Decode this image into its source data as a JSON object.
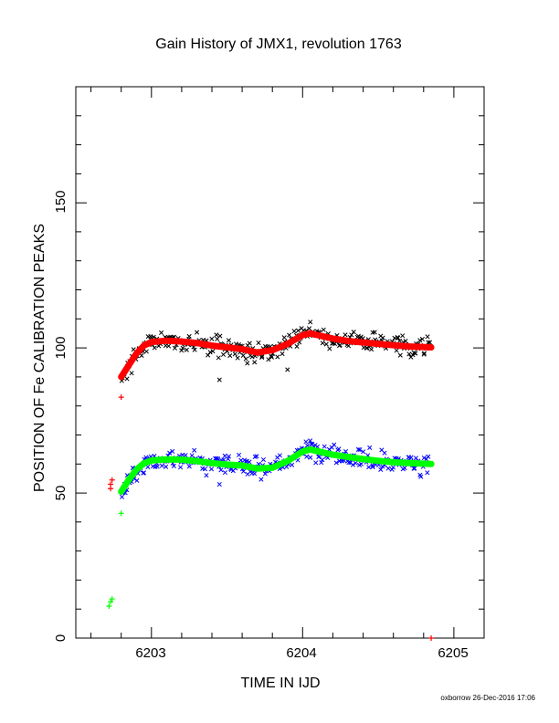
{
  "chart_data": {
    "type": "scatter",
    "title": "Gain History of JMX1, revolution 1763",
    "xlabel": "TIME IN IJD",
    "ylabel": "POSITION OF Fe CALIBRATION PEAKS",
    "xlim": [
      6202.5,
      6205.2
    ],
    "ylim": [
      0,
      190
    ],
    "x_ticks": [
      "6203",
      "6204",
      "6205"
    ],
    "y_ticks": [
      "0",
      "50",
      "100",
      "150"
    ],
    "grid": false,
    "legend": "none",
    "series": [
      {
        "marker": "x",
        "color": "#000000",
        "trend": [
          [
            6202.8,
            89
          ],
          [
            6202.85,
            93
          ],
          [
            6202.9,
            97
          ],
          [
            6202.95,
            100.5
          ],
          [
            6203.0,
            102
          ],
          [
            6203.1,
            102.5
          ],
          [
            6203.2,
            102.3
          ],
          [
            6203.3,
            101.8
          ],
          [
            6203.4,
            100.8
          ],
          [
            6203.5,
            100.2
          ],
          [
            6203.6,
            99.6
          ],
          [
            6203.7,
            98.5
          ],
          [
            6203.8,
            99.2
          ],
          [
            6203.9,
            101.5
          ],
          [
            6204.0,
            104.5
          ],
          [
            6204.05,
            105.2
          ],
          [
            6204.1,
            104.6
          ],
          [
            6204.2,
            103.4
          ],
          [
            6204.3,
            102.6
          ],
          [
            6204.4,
            102.0
          ],
          [
            6204.5,
            101.5
          ],
          [
            6204.6,
            101.0
          ],
          [
            6204.7,
            100.6
          ],
          [
            6204.85,
            100.2
          ]
        ],
        "scatter": 2.6,
        "outliers": [
          [
            6203.45,
            89
          ],
          [
            6203.9,
            92.5
          ],
          [
            6202.82,
            91
          ]
        ]
      },
      {
        "marker": "x",
        "color": "#0000ff",
        "trend": [
          [
            6202.8,
            50
          ],
          [
            6202.85,
            54
          ],
          [
            6202.9,
            57.5
          ],
          [
            6202.95,
            60
          ],
          [
            6203.0,
            61
          ],
          [
            6203.1,
            61.6
          ],
          [
            6203.2,
            61.5
          ],
          [
            6203.3,
            61.0
          ],
          [
            6203.4,
            60.3
          ],
          [
            6203.5,
            59.8
          ],
          [
            6203.6,
            59.6
          ],
          [
            6203.7,
            58.5
          ],
          [
            6203.8,
            58.8
          ],
          [
            6203.9,
            61.2
          ],
          [
            6204.0,
            64.5
          ],
          [
            6204.05,
            65.2
          ],
          [
            6204.1,
            64.5
          ],
          [
            6204.2,
            63.3
          ],
          [
            6204.3,
            62.5
          ],
          [
            6204.4,
            61.8
          ],
          [
            6204.5,
            61.2
          ],
          [
            6204.6,
            60.7
          ],
          [
            6204.7,
            60.4
          ],
          [
            6204.85,
            60.1
          ]
        ],
        "scatter": 2.6,
        "outliers": [
          [
            6203.45,
            53
          ],
          [
            6202.95,
            57
          ],
          [
            6204.05,
            68
          ]
        ]
      },
      {
        "marker": "line",
        "color": "#ff0000",
        "width": 7,
        "points": [
          [
            6202.8,
            90
          ],
          [
            6202.85,
            94
          ],
          [
            6202.9,
            98
          ],
          [
            6202.95,
            100.8
          ],
          [
            6203.0,
            102
          ],
          [
            6203.1,
            102.5
          ],
          [
            6203.2,
            102.2
          ],
          [
            6203.3,
            101.7
          ],
          [
            6203.4,
            100.8
          ],
          [
            6203.5,
            100.2
          ],
          [
            6203.6,
            99.6
          ],
          [
            6203.7,
            98.4
          ],
          [
            6203.8,
            99.2
          ],
          [
            6203.9,
            101.4
          ],
          [
            6204.0,
            104.4
          ],
          [
            6204.05,
            105.0
          ],
          [
            6204.1,
            104.4
          ],
          [
            6204.2,
            103.2
          ],
          [
            6204.3,
            102.4
          ],
          [
            6204.4,
            101.9
          ],
          [
            6204.5,
            101.4
          ],
          [
            6204.6,
            100.9
          ],
          [
            6204.7,
            100.5
          ],
          [
            6204.85,
            100.2
          ]
        ]
      },
      {
        "marker": "line",
        "color": "#00ff00",
        "width": 7,
        "points": [
          [
            6202.8,
            50.5
          ],
          [
            6202.85,
            54.5
          ],
          [
            6202.9,
            58
          ],
          [
            6202.95,
            60.2
          ],
          [
            6203.0,
            61.2
          ],
          [
            6203.1,
            61.6
          ],
          [
            6203.2,
            61.5
          ],
          [
            6203.3,
            61.0
          ],
          [
            6203.4,
            60.3
          ],
          [
            6203.5,
            59.8
          ],
          [
            6203.6,
            59.5
          ],
          [
            6203.7,
            58.4
          ],
          [
            6203.8,
            58.7
          ],
          [
            6203.9,
            61.0
          ],
          [
            6204.0,
            64.3
          ],
          [
            6204.05,
            65.0
          ],
          [
            6204.1,
            64.4
          ],
          [
            6204.2,
            63.2
          ],
          [
            6204.3,
            62.4
          ],
          [
            6204.4,
            61.7
          ],
          [
            6204.5,
            61.1
          ],
          [
            6204.6,
            60.6
          ],
          [
            6204.7,
            60.3
          ],
          [
            6204.85,
            60.0
          ]
        ]
      },
      {
        "marker": "+",
        "color": "#ff0000",
        "points": [
          [
            6202.73,
            51.5
          ],
          [
            6202.73,
            53
          ],
          [
            6202.74,
            54.5
          ],
          [
            6202.8,
            83
          ],
          [
            6204.85,
            0
          ]
        ]
      },
      {
        "marker": "+",
        "color": "#00ff00",
        "points": [
          [
            6202.72,
            11
          ],
          [
            6202.73,
            12.5
          ],
          [
            6202.74,
            13.5
          ],
          [
            6202.8,
            43
          ]
        ]
      }
    ],
    "footer": "oxborrow 26-Dec-2016 17:06"
  }
}
